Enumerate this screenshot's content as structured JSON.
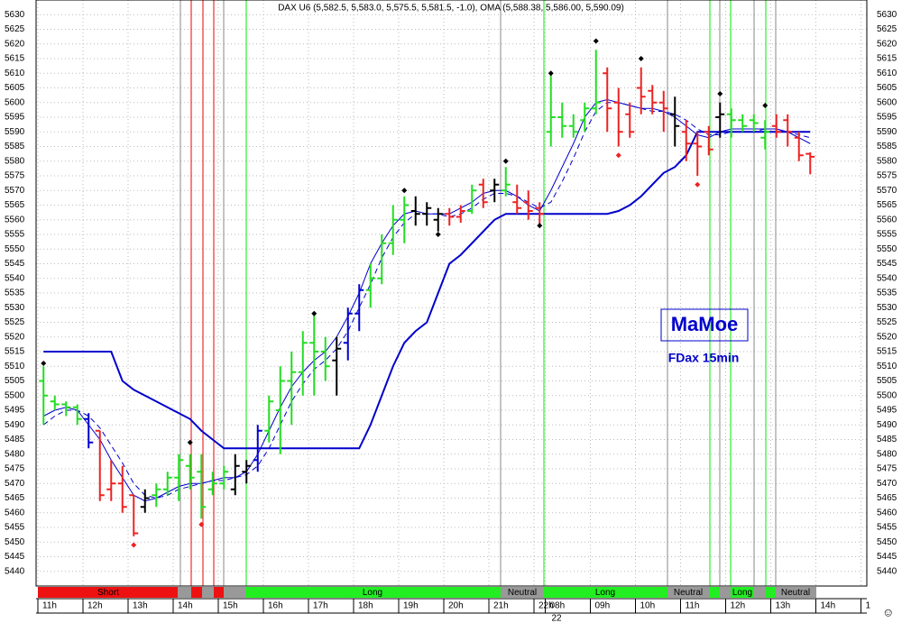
{
  "chart_data": {
    "type": "ohlc",
    "title": "DAX U6 (5,582.5, 5,583.0, 5,575.5, 5,581.5, -1.0), OMA (5,588.38, 5,586.00, 5,590.09)",
    "open": [
      5505,
      5498,
      5497,
      5496,
      5492,
      5488,
      5468,
      5470,
      5466,
      5462,
      5466,
      5468,
      5472,
      5476,
      5474,
      5468,
      5470,
      5468,
      5474,
      5478,
      5488,
      5495,
      5505,
      5508,
      5518,
      5515,
      5512,
      5518,
      5528,
      5536,
      5540,
      5552,
      5560,
      5563,
      5562,
      5560,
      5562,
      5561,
      5563,
      5572,
      5570,
      5570,
      5566,
      5566,
      5564,
      5590,
      5595,
      5592,
      5594,
      5598,
      5610,
      5600,
      5596,
      5605,
      5604,
      5600,
      5596,
      5590,
      5586,
      5590,
      5595,
      5596,
      5594,
      5594,
      5588,
      5592,
      5594,
      5588,
      5582.5
    ],
    "high": [
      5510,
      5500,
      5498,
      5497,
      5494,
      5488,
      5478,
      5476,
      5466,
      5468,
      5470,
      5474,
      5480,
      5480,
      5480,
      5474,
      5476,
      5480,
      5478,
      5490,
      5500,
      5510,
      5515,
      5522,
      5528,
      5520,
      5520,
      5530,
      5538,
      5545,
      5555,
      5565,
      5568,
      5568,
      5566,
      5564,
      5564,
      5565,
      5572,
      5574,
      5574,
      5578,
      5572,
      5570,
      5566,
      5610,
      5600,
      5596,
      5600,
      5618,
      5612,
      5605,
      5600,
      5612,
      5606,
      5604,
      5602,
      5594,
      5590,
      5592,
      5600,
      5598,
      5596,
      5596,
      5594,
      5596,
      5596,
      5590,
      5583
    ],
    "low": [
      5490,
      5495,
      5493,
      5490,
      5482,
      5464,
      5464,
      5460,
      5452,
      5460,
      5462,
      5466,
      5464,
      5468,
      5458,
      5466,
      5468,
      5466,
      5470,
      5474,
      5484,
      5480,
      5490,
      5500,
      5500,
      5505,
      5500,
      5512,
      5522,
      5530,
      5538,
      5548,
      5552,
      5558,
      5558,
      5556,
      5558,
      5559,
      5562,
      5564,
      5566,
      5568,
      5562,
      5560,
      5558,
      5585,
      5588,
      5588,
      5590,
      5596,
      5590,
      5585,
      5588,
      5596,
      5596,
      5590,
      5585,
      5580,
      5575,
      5582,
      5588,
      5588,
      5590,
      5590,
      5584,
      5588,
      5585,
      5580,
      5575.5
    ],
    "close": [
      5500,
      5497,
      5496,
      5492,
      5484,
      5466,
      5470,
      5462,
      5453,
      5465,
      5468,
      5472,
      5478,
      5472,
      5462,
      5470,
      5474,
      5476,
      5476,
      5488,
      5498,
      5505,
      5508,
      5518,
      5515,
      5510,
      5516,
      5528,
      5536,
      5540,
      5552,
      5560,
      5565,
      5562,
      5564,
      5562,
      5561,
      5563,
      5570,
      5566,
      5572,
      5572,
      5564,
      5563,
      5562,
      5595,
      5592,
      5590,
      5598,
      5600,
      5598,
      5590,
      5590,
      5602,
      5600,
      5598,
      5592,
      5586,
      5585,
      5584,
      5596,
      5594,
      5592,
      5593,
      5590,
      5590,
      5590,
      5582,
      5581.5
    ],
    "bar_colors": [
      "#22dd22",
      "#22dd22",
      "#22dd22",
      "#22dd22",
      "#0000cc",
      "#ee2222",
      "#ee2222",
      "#ee2222",
      "#ee2222",
      "#000000",
      "#22dd22",
      "#22dd22",
      "#22dd22",
      "#22dd22",
      "#22dd22",
      "#22dd22",
      "#22dd22",
      "#000000",
      "#000000",
      "#0000cc",
      "#22dd22",
      "#22dd22",
      "#22dd22",
      "#22dd22",
      "#22dd22",
      "#22dd22",
      "#000000",
      "#0000cc",
      "#0000cc",
      "#22dd22",
      "#22dd22",
      "#22dd22",
      "#22dd22",
      "#000000",
      "#000000",
      "#000000",
      "#ee2222",
      "#ee2222",
      "#22dd22",
      "#ee2222",
      "#000000",
      "#22dd22",
      "#ee2222",
      "#ee2222",
      "#ee2222",
      "#22dd22",
      "#22dd22",
      "#22dd22",
      "#22dd22",
      "#22dd22",
      "#ee2222",
      "#ee2222",
      "#ee2222",
      "#ee2222",
      "#ee2222",
      "#ee2222",
      "#000000",
      "#ee2222",
      "#ee2222",
      "#ee2222",
      "#000000",
      "#22dd22",
      "#22dd22",
      "#22dd22",
      "#22dd22",
      "#ee2222",
      "#ee2222",
      "#ee2222",
      "#ee2222"
    ],
    "overlays": [
      {
        "color": "#0000cc",
        "width": 2,
        "dashed": false,
        "values": [
          5515,
          5515,
          5515,
          5515,
          5515,
          5515,
          5515,
          5505,
          5502,
          5500,
          5498,
          5496,
          5494,
          5492,
          5488,
          5485,
          5482,
          5482,
          5482,
          5482,
          5482,
          5482,
          5482,
          5482,
          5482,
          5482,
          5482,
          5482,
          5482,
          5490,
          5500,
          5510,
          5518,
          5522,
          5525,
          5535,
          5545,
          5548,
          5552,
          5556,
          5560,
          5562,
          5562,
          5562,
          5562,
          5562,
          5562,
          5562,
          5562,
          5562,
          5562,
          5563,
          5565,
          5568,
          5572,
          5576,
          5578,
          5582,
          5590,
          5590,
          5590,
          5590,
          5590,
          5590,
          5590,
          5590,
          5590,
          5590,
          5590
        ]
      },
      {
        "color": "#0000cc",
        "width": 1,
        "dashed": false,
        "values": [
          5493,
          5495,
          5496,
          5495,
          5490,
          5485,
          5478,
          5472,
          5466,
          5464,
          5465,
          5467,
          5469,
          5470,
          5470,
          5471,
          5472,
          5472,
          5474,
          5480,
          5488,
          5496,
          5503,
          5508,
          5512,
          5515,
          5520,
          5527,
          5535,
          5545,
          5552,
          5558,
          5562,
          5563,
          5562,
          5562,
          5562,
          5564,
          5566,
          5569,
          5570,
          5570,
          5568,
          5565,
          5563,
          5570,
          5578,
          5586,
          5595,
          5600,
          5601,
          5600,
          5599,
          5598,
          5598,
          5597,
          5595,
          5592,
          5589,
          5588,
          5590,
          5591,
          5591,
          5591,
          5591,
          5591,
          5590,
          5588,
          5586
        ]
      },
      {
        "color": "#0000cc",
        "width": 1,
        "dashed": true,
        "values": [
          5490,
          5493,
          5495,
          5495,
          5493,
          5489,
          5483,
          5477,
          5470,
          5466,
          5465,
          5466,
          5468,
          5469,
          5470,
          5471,
          5471,
          5472,
          5473,
          5476,
          5482,
          5490,
          5498,
          5504,
          5509,
          5512,
          5516,
          5522,
          5530,
          5538,
          5547,
          5554,
          5559,
          5562,
          5562,
          5562,
          5561,
          5562,
          5564,
          5567,
          5569,
          5569,
          5568,
          5566,
          5564,
          5566,
          5573,
          5581,
          5590,
          5597,
          5600,
          5600,
          5599,
          5598,
          5597,
          5597,
          5596,
          5594,
          5591,
          5589,
          5589,
          5590,
          5590,
          5590,
          5591,
          5591,
          5590,
          5589,
          5588
        ]
      }
    ],
    "markers": [
      {
        "x": 0,
        "value": 5511,
        "color": "#000000"
      },
      {
        "x": 8,
        "value": 5449,
        "color": "#ee2222"
      },
      {
        "x": 13,
        "value": 5484,
        "color": "#000000"
      },
      {
        "x": 14,
        "value": 5456,
        "color": "#ee2222"
      },
      {
        "x": 24,
        "value": 5528,
        "color": "#000000"
      },
      {
        "x": 32,
        "value": 5570,
        "color": "#000000"
      },
      {
        "x": 35,
        "value": 5555,
        "color": "#000000"
      },
      {
        "x": 41,
        "value": 5580,
        "color": "#000000"
      },
      {
        "x": 44,
        "value": 5558,
        "color": "#000000"
      },
      {
        "x": 45,
        "value": 5610,
        "color": "#000000"
      },
      {
        "x": 49,
        "value": 5621,
        "color": "#000000"
      },
      {
        "x": 51,
        "value": 5582,
        "color": "#ee2222"
      },
      {
        "x": 53,
        "value": 5615,
        "color": "#000000"
      },
      {
        "x": 58,
        "value": 5572,
        "color": "#ee2222"
      },
      {
        "x": 60,
        "value": 5603,
        "color": "#000000"
      },
      {
        "x": 64,
        "value": 5599,
        "color": "#000000"
      }
    ],
    "ylim": [
      5435,
      5635
    ],
    "yticks": [
      5440,
      5445,
      5450,
      5455,
      5460,
      5465,
      5470,
      5475,
      5480,
      5485,
      5490,
      5495,
      5500,
      5505,
      5510,
      5515,
      5520,
      5525,
      5530,
      5535,
      5540,
      5545,
      5550,
      5555,
      5560,
      5565,
      5570,
      5575,
      5580,
      5585,
      5590,
      5595,
      5600,
      5605,
      5610,
      5615,
      5620,
      5625,
      5630
    ],
    "xlim": [
      0,
      73.5
    ],
    "xticks": [
      {
        "value": 0,
        "label": "11h"
      },
      {
        "value": 4,
        "label": "12h"
      },
      {
        "value": 8,
        "label": "13h"
      },
      {
        "value": 12,
        "label": "14h"
      },
      {
        "value": 16,
        "label": "15h"
      },
      {
        "value": 20,
        "label": "16h"
      },
      {
        "value": 24,
        "label": "17h"
      },
      {
        "value": 28,
        "label": "18h"
      },
      {
        "value": 32,
        "label": "19h"
      },
      {
        "value": 36,
        "label": "20h"
      },
      {
        "value": 40,
        "label": "21h"
      },
      {
        "value": 44,
        "label": "22h"
      },
      {
        "value": 45,
        "label": "08h"
      },
      {
        "value": 49,
        "label": "09h"
      },
      {
        "value": 53,
        "label": "10h"
      },
      {
        "value": 57,
        "label": "11h"
      },
      {
        "value": 61,
        "label": "12h"
      },
      {
        "value": 65,
        "label": "13h"
      },
      {
        "value": 69,
        "label": "14h"
      },
      {
        "value": 73,
        "label": "1"
      }
    ],
    "date_label": "22",
    "grid": true,
    "signals": [
      "Short",
      "Long",
      "Neutral",
      "Long",
      "Neutral",
      "Long",
      "Neutral"
    ],
    "logo": "MaMoe",
    "subtitle": "FDax 15min",
    "footer_icon": "☺"
  }
}
